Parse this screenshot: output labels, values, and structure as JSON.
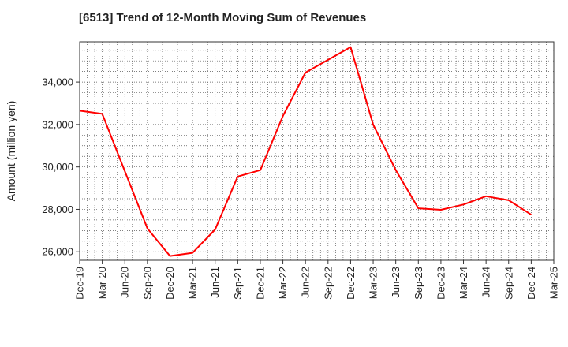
{
  "chart_data": {
    "type": "line",
    "title": "[6513]  Trend of 12-Month Moving Sum of Revenues",
    "xlabel": "",
    "ylabel": "Amount (million yen)",
    "x_tick_labels": [
      "Dec-19",
      "Mar-20",
      "Jun-20",
      "Sep-20",
      "Dec-20",
      "Mar-21",
      "Jun-21",
      "Sep-21",
      "Dec-21",
      "Mar-22",
      "Jun-22",
      "Sep-22",
      "Dec-22",
      "Mar-23",
      "Jun-23",
      "Sep-23",
      "Dec-23",
      "Mar-24",
      "Jun-24",
      "Sep-24",
      "Dec-24",
      "Mar-25"
    ],
    "y_ticks": [
      26000,
      28000,
      30000,
      32000,
      34000
    ],
    "y_tick_labels": [
      "26,000",
      "28,000",
      "30,000",
      "32,000",
      "34,000"
    ],
    "ylim": [
      25600,
      35900
    ],
    "grid": true,
    "series": [
      {
        "color": "#ff0000",
        "x": [
          "Dec-19",
          "Mar-20",
          "Jun-20",
          "Sep-20",
          "Dec-20",
          "Mar-21",
          "Jun-21",
          "Sep-21",
          "Dec-21",
          "Mar-22",
          "Jun-22",
          "Sep-22",
          "Dec-22",
          "Mar-23",
          "Jun-23",
          "Sep-23",
          "Dec-23",
          "Mar-24",
          "Jun-24",
          "Sep-24",
          "Dec-24"
        ],
        "values": [
          32650,
          32500,
          29800,
          27100,
          25800,
          25950,
          27050,
          29550,
          29850,
          32400,
          34450,
          35050,
          35650,
          32000,
          29850,
          28050,
          27980,
          28230,
          28620,
          28430,
          27750
        ]
      }
    ]
  }
}
